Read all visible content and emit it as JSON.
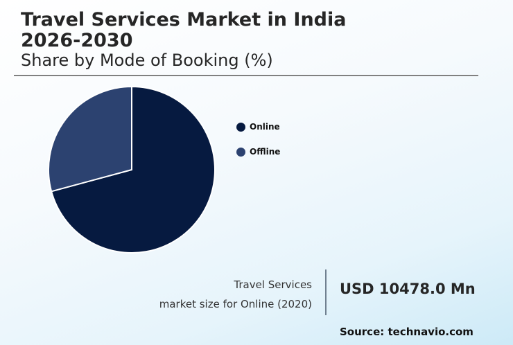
{
  "header": {
    "title": "Travel Services Market in India 2026-2030",
    "subtitle": "Share by Mode of Booking (%)"
  },
  "legend": {
    "items": [
      {
        "label": "Online",
        "color": "#061a40"
      },
      {
        "label": "Offline",
        "color": "#2c4270"
      }
    ]
  },
  "stat": {
    "label_line1": "Travel Services",
    "label_line2": "market size for Online (2020)",
    "value": "USD 10478.0 Mn"
  },
  "footer": {
    "source": "Source: technavio.com"
  },
  "chart_data": {
    "type": "pie",
    "title": "Travel Services Market in India 2026-2030",
    "subtitle": "Share by Mode of Booking (%)",
    "categories": [
      "Online",
      "Offline"
    ],
    "values": [
      70.8,
      29.2
    ],
    "colors": [
      "#061a40",
      "#2c4270"
    ],
    "start_angle": "12 o'clock, clockwise",
    "legend_position": "right",
    "annotation": "Travel Services market size for Online (2020): USD 10478.0 Mn"
  }
}
